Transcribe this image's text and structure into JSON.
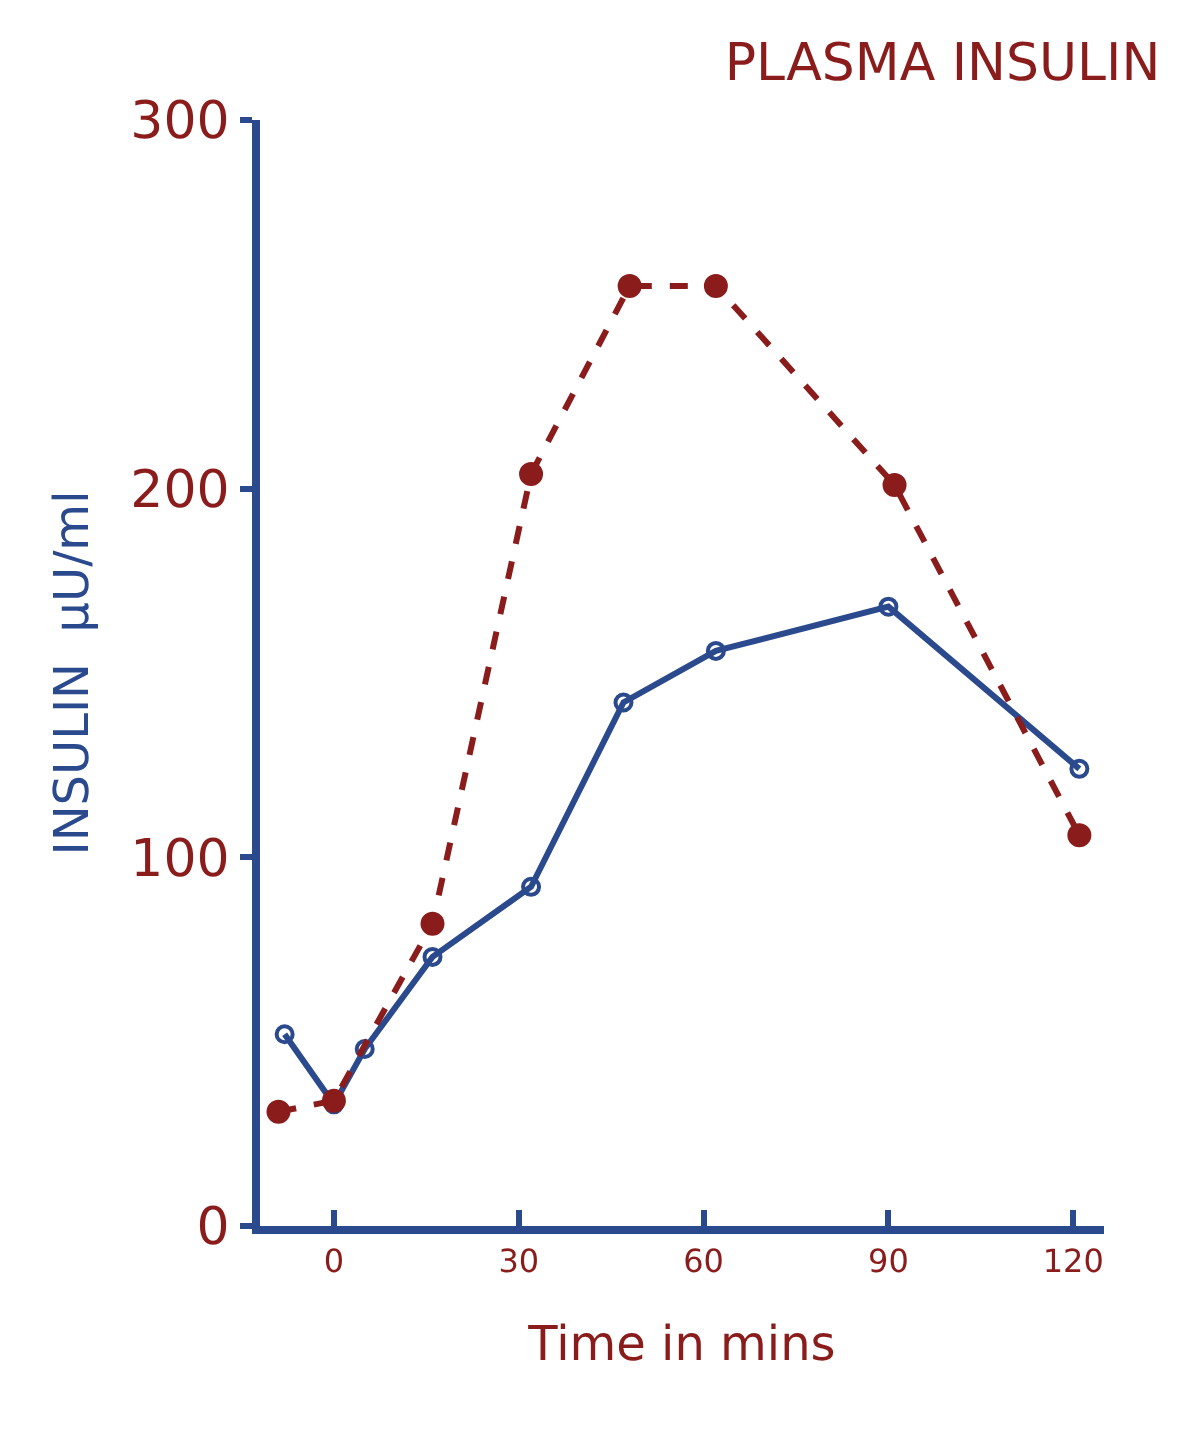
{
  "chart_data": {
    "type": "line",
    "title": "PLASMA INSULIN",
    "xlabel": "Time in mins",
    "ylabel": "INSULIN  μU/ml",
    "xlim": [
      -12,
      125
    ],
    "xticks": [
      0,
      30,
      60,
      90,
      120
    ],
    "ylim": [
      0,
      300
    ],
    "yticks": [
      0,
      100,
      200,
      300
    ],
    "grid": false,
    "legend": false,
    "series": [
      {
        "x": [
          -8,
          0,
          5,
          16,
          32,
          47,
          62,
          90,
          121
        ],
        "values": [
          52,
          33,
          48,
          73,
          92,
          142,
          156,
          168,
          124
        ],
        "color": "#2b4a8e",
        "marker": "circle",
        "line_style": "solid"
      },
      {
        "x": [
          -9,
          0,
          16,
          32,
          48,
          62,
          91,
          121
        ],
        "values": [
          31,
          34,
          82,
          204,
          255,
          255,
          201,
          106
        ],
        "color": "#8b1c1c",
        "marker": "circle",
        "line_style": "dashed"
      }
    ]
  }
}
